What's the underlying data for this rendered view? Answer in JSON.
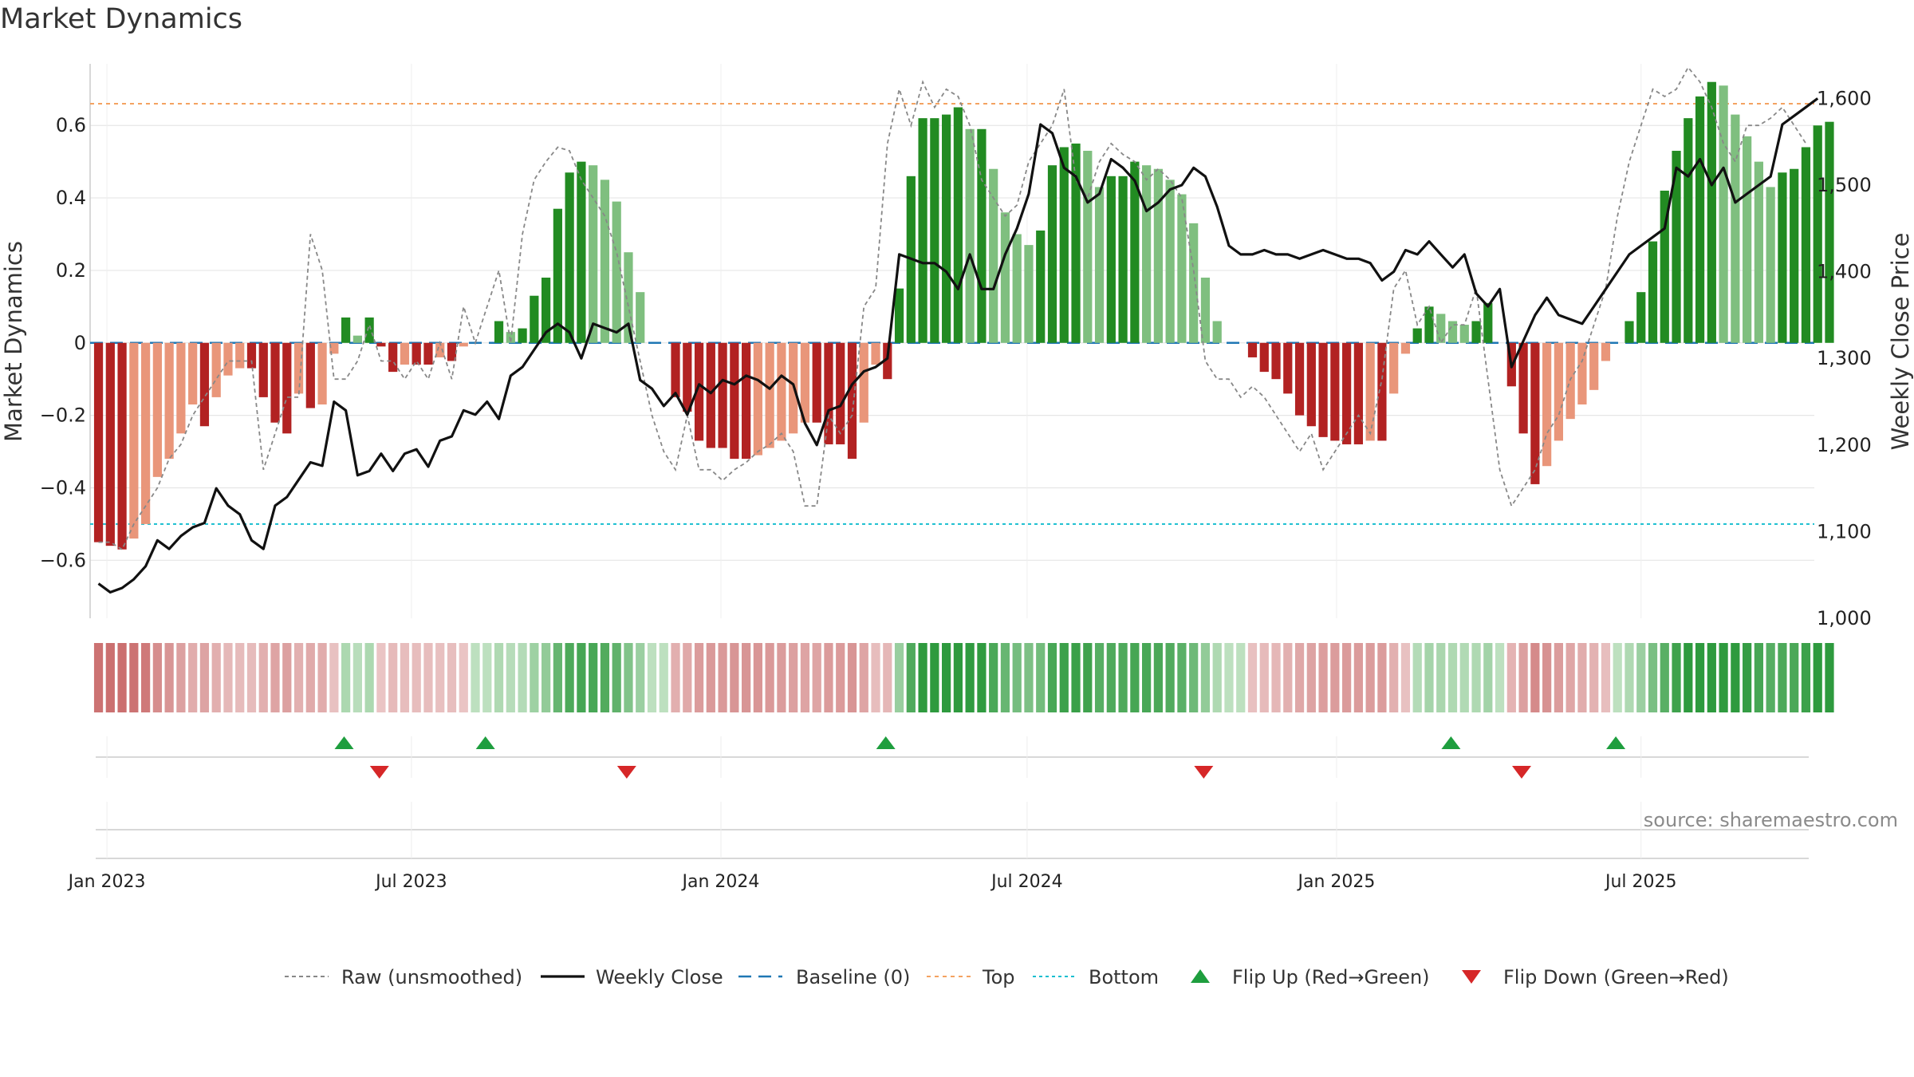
{
  "title": "Market Dynamics",
  "source": "source: sharemaestro.com",
  "colors": {
    "bull_strong": "#228b22",
    "bull_weak": "#7fbf7f",
    "bear_strong": "#b22222",
    "bear_weak": "#e9967a",
    "close": "#111111",
    "raw": "#888888",
    "baseline": "#1f77b4",
    "top": "#f4a261",
    "bottom": "#17becf",
    "flip_up": "#1e9e3e",
    "flip_down": "#d62728"
  },
  "chart_data": {
    "type": "bar",
    "title": "Market Dynamics",
    "xlabel": "",
    "ylabel": "Market Dynamics",
    "y2label": "Weekly Close Price",
    "ylim": [
      -0.76,
      0.77
    ],
    "y2lim": [
      1000,
      1640
    ],
    "yticks": [
      -0.6,
      -0.4,
      -0.2,
      0,
      0.2,
      0.4,
      0.6
    ],
    "ytick_labels": [
      "−0.6",
      "−0.4",
      "−0.2",
      "0",
      "0.2",
      "0.4",
      "0.6"
    ],
    "y2ticks": [
      1000,
      1100,
      1200,
      1300,
      1400,
      1500,
      1600
    ],
    "y2tick_labels": [
      "1,000",
      "1,100",
      "1,200",
      "1,300",
      "1,400",
      "1,500",
      "1,600"
    ],
    "xticks": [
      "2023-01-01",
      "2023-07-01",
      "2024-01-01",
      "2024-07-01",
      "2025-01-01",
      "2025-07-01"
    ],
    "xtick_labels": [
      "Jan 2023",
      "Jul 2023",
      "Jan 2024",
      "Jul 2024",
      "Jan 2025",
      "Jul 2025"
    ],
    "x_range": [
      "2022-12-22",
      "2025-10-12"
    ],
    "first_week": "2022-12-27",
    "week_step_days": 7,
    "top_level": 0.66,
    "bottom_level": -0.5,
    "baseline_level": 0,
    "grid": true,
    "legend_position": "bottom",
    "legend": [
      "Raw (unsmoothed)",
      "Weekly Close",
      "Baseline (0)",
      "Top",
      "Bottom",
      "Flip Up (Red→Green)",
      "Flip Down (Green→Red)"
    ],
    "series": [
      {
        "name": "Market Dynamics",
        "kind": "bar",
        "values": [
          -0.55,
          -0.56,
          -0.57,
          -0.54,
          -0.5,
          -0.37,
          -0.32,
          -0.25,
          -0.17,
          -0.23,
          -0.15,
          -0.09,
          -0.07,
          -0.07,
          -0.15,
          -0.22,
          -0.25,
          -0.14,
          -0.18,
          -0.17,
          -0.03,
          0.07,
          0.02,
          0.07,
          -0.01,
          -0.08,
          -0.06,
          -0.06,
          -0.06,
          -0.04,
          -0.05,
          -0.01,
          0.0,
          0.0,
          0.06,
          0.03,
          0.04,
          0.13,
          0.18,
          0.37,
          0.47,
          0.5,
          0.49,
          0.45,
          0.39,
          0.25,
          0.14,
          0.0,
          0.0,
          -0.15,
          -0.19,
          -0.27,
          -0.29,
          -0.29,
          -0.32,
          -0.32,
          -0.31,
          -0.29,
          -0.27,
          -0.25,
          -0.22,
          -0.22,
          -0.28,
          -0.28,
          -0.32,
          -0.22,
          -0.06,
          -0.1,
          0.15,
          0.46,
          0.62,
          0.62,
          0.63,
          0.65,
          0.59,
          0.59,
          0.48,
          0.36,
          0.3,
          0.27,
          0.31,
          0.49,
          0.54,
          0.55,
          0.53,
          0.43,
          0.46,
          0.46,
          0.5,
          0.49,
          0.48,
          0.45,
          0.41,
          0.33,
          0.18,
          0.06,
          0.0,
          0.0,
          -0.04,
          -0.08,
          -0.1,
          -0.14,
          -0.2,
          -0.23,
          -0.26,
          -0.27,
          -0.28,
          -0.28,
          -0.27,
          -0.27,
          -0.14,
          -0.03,
          0.04,
          0.1,
          0.08,
          0.06,
          0.05,
          0.06,
          0.11,
          0.0,
          -0.12,
          -0.25,
          -0.39,
          -0.34,
          -0.27,
          -0.21,
          -0.17,
          -0.13,
          -0.05,
          0.0,
          0.06,
          0.14,
          0.28,
          0.42,
          0.53,
          0.62,
          0.68,
          0.72,
          0.71,
          0.63,
          0.57,
          0.5,
          0.43,
          0.47,
          0.48,
          0.54,
          0.6,
          0.61
        ]
      },
      {
        "name": "Raw (unsmoothed)",
        "kind": "line",
        "values": [
          -0.55,
          -0.55,
          -0.57,
          -0.5,
          -0.45,
          -0.4,
          -0.32,
          -0.28,
          -0.2,
          -0.15,
          -0.1,
          -0.05,
          -0.05,
          -0.05,
          -0.35,
          -0.25,
          -0.15,
          -0.15,
          0.3,
          0.2,
          -0.1,
          -0.1,
          -0.05,
          0.05,
          -0.05,
          -0.05,
          -0.1,
          -0.05,
          -0.1,
          0.0,
          -0.1,
          0.1,
          0.0,
          0.1,
          0.2,
          0.0,
          0.3,
          0.45,
          0.5,
          0.54,
          0.53,
          0.45,
          0.4,
          0.35,
          0.25,
          0.1,
          -0.05,
          -0.2,
          -0.3,
          -0.35,
          -0.2,
          -0.35,
          -0.35,
          -0.38,
          -0.35,
          -0.33,
          -0.3,
          -0.28,
          -0.25,
          -0.3,
          -0.45,
          -0.45,
          -0.2,
          -0.25,
          -0.2,
          0.1,
          0.15,
          0.55,
          0.7,
          0.6,
          0.72,
          0.65,
          0.7,
          0.68,
          0.6,
          0.45,
          0.4,
          0.35,
          0.38,
          0.5,
          0.55,
          0.6,
          0.7,
          0.45,
          0.4,
          0.5,
          0.55,
          0.52,
          0.5,
          0.45,
          0.48,
          0.45,
          0.4,
          0.2,
          -0.05,
          -0.1,
          -0.1,
          -0.15,
          -0.12,
          -0.15,
          -0.2,
          -0.25,
          -0.3,
          -0.25,
          -0.35,
          -0.3,
          -0.25,
          -0.2,
          -0.25,
          -0.1,
          0.15,
          0.2,
          0.05,
          0.1,
          0.0,
          0.05,
          0.05,
          0.15,
          -0.1,
          -0.35,
          -0.45,
          -0.4,
          -0.35,
          -0.25,
          -0.2,
          -0.1,
          -0.05,
          0.05,
          0.15,
          0.35,
          0.5,
          0.6,
          0.7,
          0.68,
          0.7,
          0.76,
          0.72,
          0.65,
          0.55,
          0.5,
          0.6,
          0.6,
          0.62,
          0.65,
          0.6,
          0.55
        ]
      },
      {
        "name": "Weekly Close",
        "kind": "line",
        "axis": "right",
        "values": [
          1040,
          1030,
          1035,
          1045,
          1060,
          1090,
          1080,
          1095,
          1105,
          1110,
          1150,
          1130,
          1120,
          1090,
          1080,
          1130,
          1140,
          1160,
          1180,
          1176,
          1250,
          1240,
          1165,
          1170,
          1190,
          1170,
          1190,
          1195,
          1175,
          1205,
          1210,
          1240,
          1235,
          1250,
          1230,
          1280,
          1290,
          1310,
          1330,
          1340,
          1330,
          1300,
          1340,
          1335,
          1330,
          1340,
          1275,
          1265,
          1245,
          1260,
          1235,
          1270,
          1260,
          1275,
          1270,
          1280,
          1275,
          1265,
          1280,
          1270,
          1225,
          1200,
          1240,
          1245,
          1270,
          1285,
          1290,
          1300,
          1420,
          1415,
          1410,
          1410,
          1400,
          1380,
          1420,
          1380,
          1380,
          1420,
          1450,
          1490,
          1570,
          1560,
          1520,
          1510,
          1480,
          1490,
          1530,
          1520,
          1505,
          1470,
          1480,
          1495,
          1500,
          1520,
          1510,
          1475,
          1430,
          1420,
          1420,
          1425,
          1420,
          1420,
          1415,
          1420,
          1425,
          1420,
          1415,
          1415,
          1410,
          1390,
          1400,
          1425,
          1420,
          1435,
          1420,
          1405,
          1420,
          1375,
          1360,
          1380,
          1290,
          1320,
          1350,
          1370,
          1350,
          1345,
          1340,
          1360,
          1380,
          1400,
          1420,
          1430,
          1440,
          1450,
          1520,
          1510,
          1530,
          1500,
          1520,
          1480,
          1490,
          1500,
          1510,
          1570,
          1580,
          1590,
          1600
        ]
      }
    ],
    "flip_up_dates": [
      "2023-05-22",
      "2023-08-14",
      "2024-04-08",
      "2025-03-10",
      "2025-06-16"
    ],
    "flip_down_dates": [
      "2023-06-12",
      "2023-11-06",
      "2024-10-14",
      "2025-04-21"
    ]
  }
}
